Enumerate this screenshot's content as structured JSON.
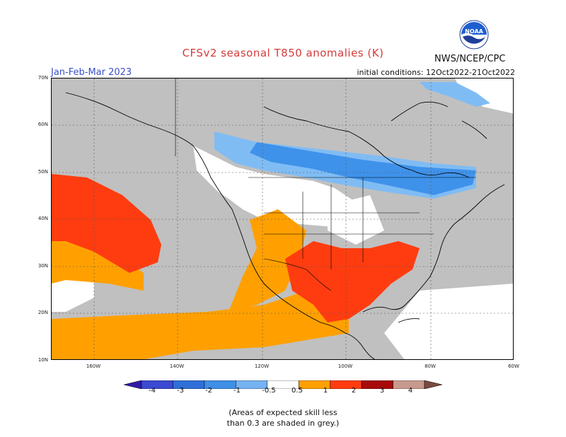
{
  "header": {
    "title": "CFSv2 seasonal T850 anomalies (K)",
    "organization": "NWS/NCEP/CPC",
    "season": "Jan-Feb-Mar 2023",
    "initial_conditions": "initial conditions: 12Oct2022-21Oct2022"
  },
  "logo": {
    "text": "NOAA",
    "icon": "noaa-logo-icon"
  },
  "map": {
    "lat_labels": [
      "70N",
      "60N",
      "50N",
      "40N",
      "30N",
      "20N",
      "10N"
    ],
    "lon_labels": [
      "160W",
      "140W",
      "120W",
      "100W",
      "80W",
      "60W"
    ]
  },
  "colorbar": {
    "labels": [
      "-4",
      "-3",
      "-2",
      "-1",
      "-0.5",
      "0.5",
      "1",
      "2",
      "3",
      "4"
    ],
    "colors": [
      "#2e1aa8",
      "#3b4ad0",
      "#2f6fd8",
      "#3f8fe6",
      "#74b2f2",
      "#ffffff",
      "#ffa000",
      "#ff3c10",
      "#a80a0a",
      "#c89a8e",
      "#7a4a40"
    ]
  },
  "palette": {
    "grey": "#c0c0c0",
    "light_blue": "#80bcf4",
    "blue": "#3f92ea",
    "orange": "#ffa000",
    "red": "#ff3c10"
  },
  "footnote": {
    "line1": "(Areas of expected skill less",
    "line2": "than 0.3 are shaded in grey.)"
  }
}
